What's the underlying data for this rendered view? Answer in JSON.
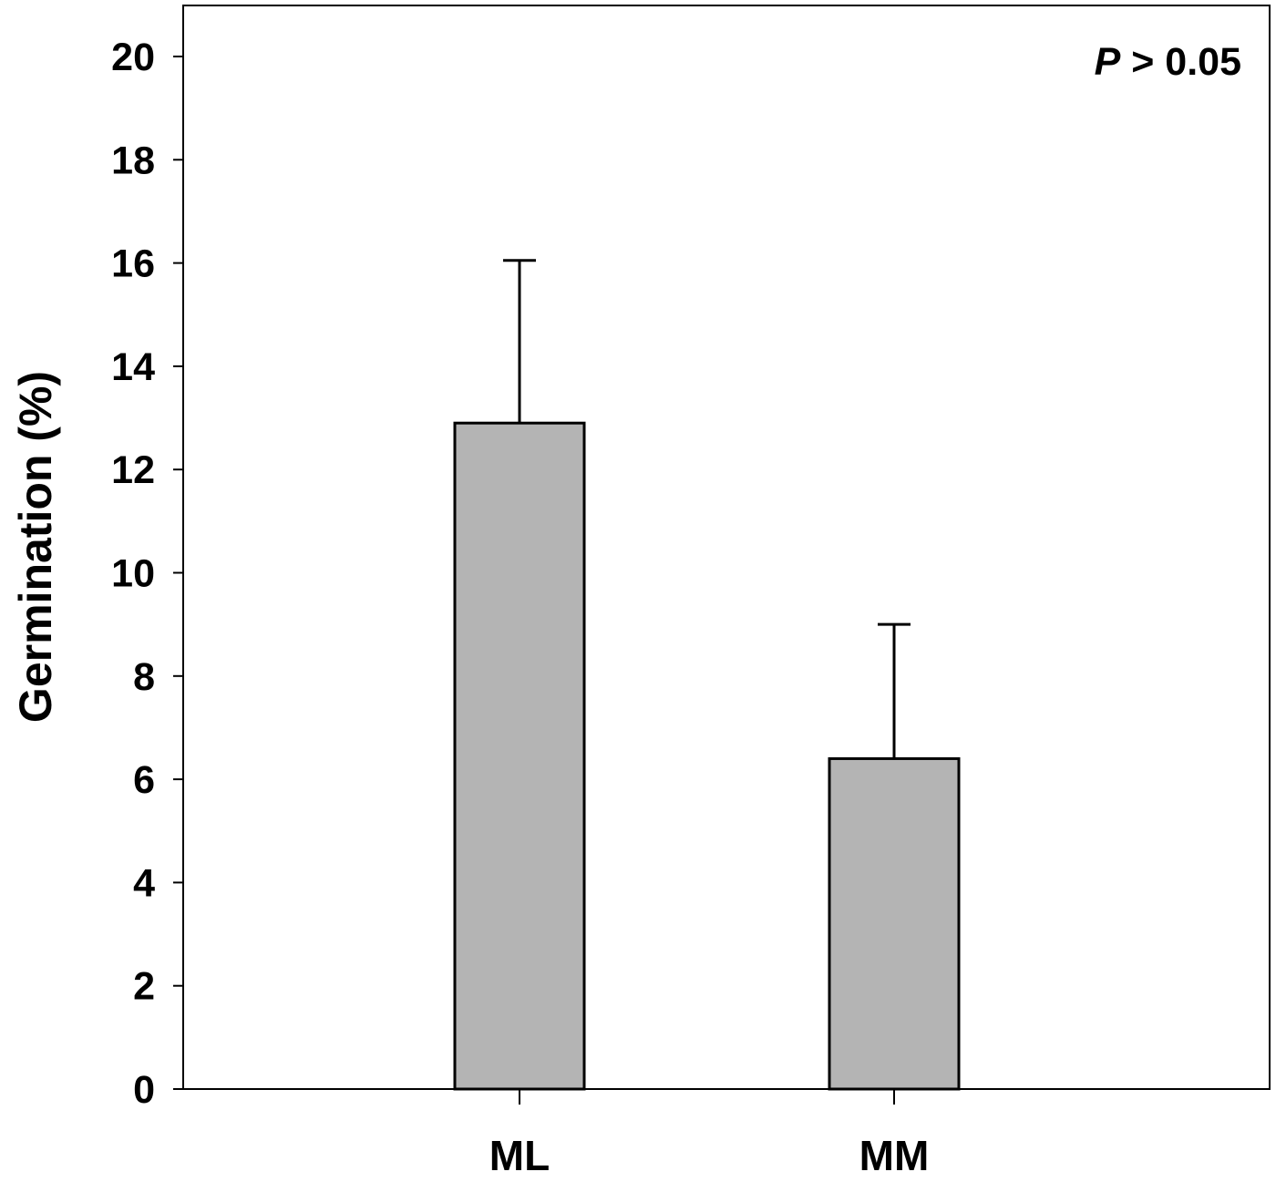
{
  "chart_data": {
    "type": "bar",
    "title": "",
    "xlabel": "",
    "ylabel": "Germination (%)",
    "categories": [
      "ML",
      "MM"
    ],
    "values": [
      12.9,
      6.4
    ],
    "error_upper": [
      16.05,
      9.0
    ],
    "error": [
      3.15,
      2.6
    ],
    "ylim": [
      0,
      20
    ],
    "yticks": [
      0,
      2,
      4,
      6,
      8,
      10,
      12,
      14,
      16,
      18,
      20
    ],
    "grid": false,
    "annotation": {
      "italic": "P",
      "text": " > 0.05"
    },
    "bar_color": "#b4b4b4",
    "edge_color": "#000000"
  }
}
